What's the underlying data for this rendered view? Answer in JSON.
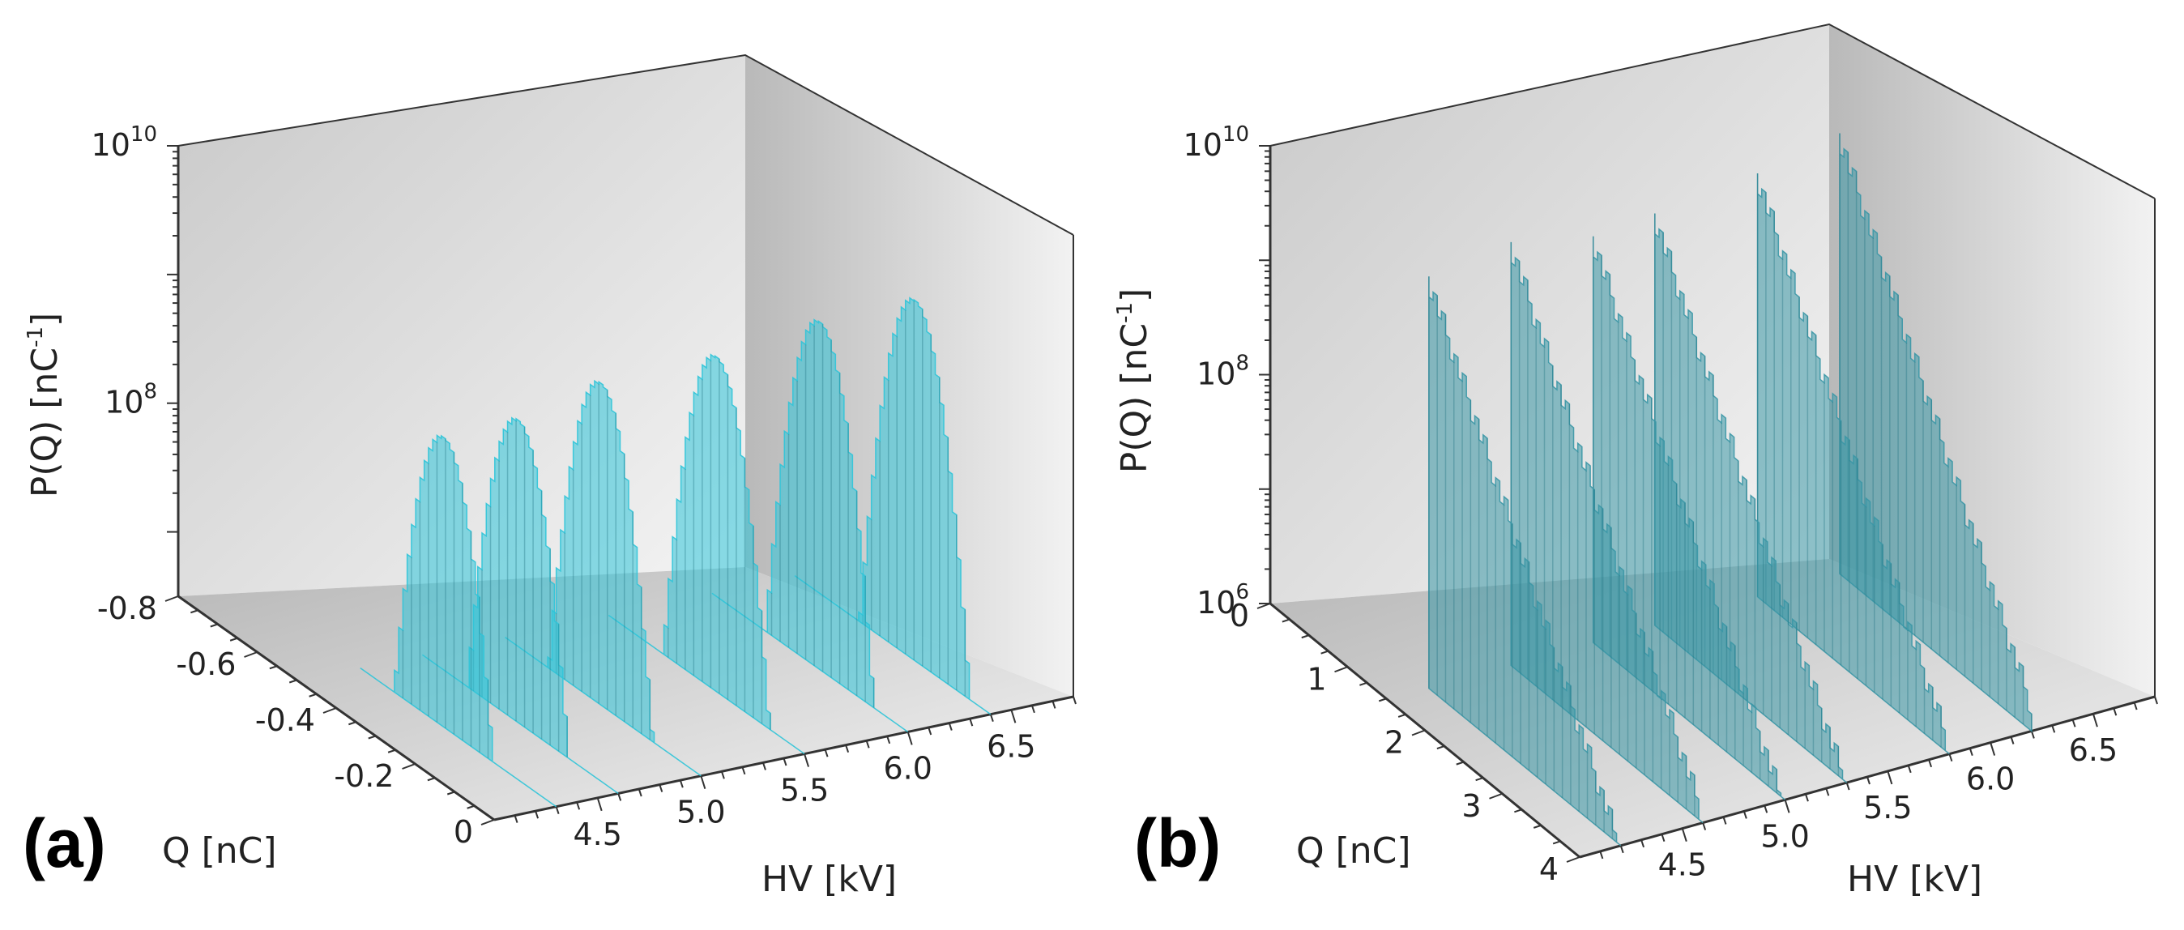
{
  "chart_data": [
    {
      "panel": "(a)",
      "type": "3d-histogram-stack",
      "xlabel": "HV [kV]",
      "ylabel": "Q [nC]",
      "zlabel_main": "P(Q) [nC",
      "zlabel_sup": "-1",
      "zlabel_close": "]",
      "zscale": "log",
      "hv_ticks": [
        "4.5",
        "5.0",
        "5.5",
        "6.0",
        "6.5"
      ],
      "q_ticks": [
        "-0.8",
        "-0.6",
        "-0.4",
        "-0.2",
        "0"
      ],
      "z_ticks": [
        {
          "base": "10",
          "exp": "8",
          "value": 8
        },
        {
          "base": "10",
          "exp": "10",
          "value": 10
        }
      ],
      "hv_range": [
        4.0,
        6.8
      ],
      "q_range": [
        -0.8,
        0.0
      ],
      "zlog_range": [
        6.5,
        10
      ],
      "series": [
        {
          "hv": 4.3,
          "q_peak": -0.45,
          "logP_peak": 8.75
        },
        {
          "hv": 4.6,
          "q_peak": -0.4,
          "logP_peak": 8.85
        },
        {
          "hv": 5.0,
          "q_peak": -0.4,
          "logP_peak": 9.0
        },
        {
          "hv": 5.5,
          "q_peak": -0.35,
          "logP_peak": 9.1
        },
        {
          "hv": 6.0,
          "q_peak": -0.35,
          "logP_peak": 9.2
        },
        {
          "hv": 6.4,
          "q_peak": -0.3,
          "logP_peak": 9.3
        }
      ],
      "color": "#2fc4d8"
    },
    {
      "panel": "(b)",
      "type": "3d-histogram-stack",
      "xlabel": "HV [kV]",
      "ylabel": "Q [nC]",
      "zlabel_main": "P(Q) [nC",
      "zlabel_sup": "-1",
      "zlabel_close": "]",
      "zscale": "log",
      "hv_ticks": [
        "4.5",
        "5.0",
        "5.5",
        "6.0",
        "6.5"
      ],
      "q_ticks": [
        "0",
        "1",
        "2",
        "3",
        "4"
      ],
      "z_ticks": [
        {
          "base": "10",
          "exp": "6",
          "value": 6
        },
        {
          "base": "10",
          "exp": "8",
          "value": 8
        },
        {
          "base": "10",
          "exp": "10",
          "value": 10
        }
      ],
      "hv_range": [
        4.0,
        6.8
      ],
      "q_range": [
        0,
        4
      ],
      "zlog_range": [
        6,
        10
      ],
      "series": [
        {
          "hv": 4.2,
          "logP_peak": 9.6
        },
        {
          "hv": 4.6,
          "logP_peak": 9.7
        },
        {
          "hv": 5.0,
          "logP_peak": 9.55
        },
        {
          "hv": 5.3,
          "logP_peak": 9.6
        },
        {
          "hv": 5.8,
          "logP_peak": 9.7
        },
        {
          "hv": 6.2,
          "logP_peak": 9.85
        }
      ],
      "color": "#3b97a6"
    }
  ]
}
